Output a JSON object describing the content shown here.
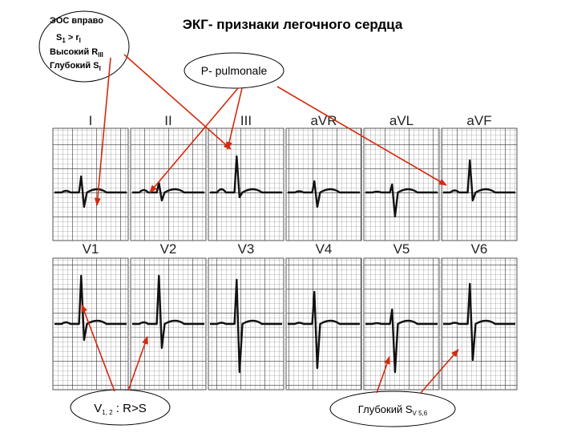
{
  "title": "ЭКГ- признаки легочного сердца",
  "callout_axis": {
    "lines": [
      [
        {
          "text": "ЭОС вправо"
        }
      ],
      [
        {
          "text": "S"
        },
        {
          "text": "1",
          "sub": true
        },
        {
          "text": " > r"
        },
        {
          "text": "I",
          "sub": true
        }
      ],
      [
        {
          "text": "Высокий R"
        },
        {
          "text": "III",
          "sub": true
        }
      ],
      [
        {
          "text": "Глубокий S"
        },
        {
          "text": "I",
          "sub": true
        }
      ]
    ]
  },
  "callout_p": {
    "text": "P- pulmonale"
  },
  "callout_v12": {
    "parts": [
      {
        "text": "V"
      },
      {
        "text": "1, 2",
        "sub": true
      },
      {
        "text": " : R>S"
      }
    ]
  },
  "callout_sv": {
    "parts": [
      {
        "text": "Глубокий  S"
      },
      {
        "text": "V 5,6",
        "sub": true
      }
    ]
  },
  "leads": {
    "limb": [
      "I",
      "II",
      "III",
      "aVR",
      "aVL",
      "aVF"
    ],
    "chest": [
      "V1",
      "V2",
      "V3",
      "V4",
      "V5",
      "V6"
    ]
  }
}
